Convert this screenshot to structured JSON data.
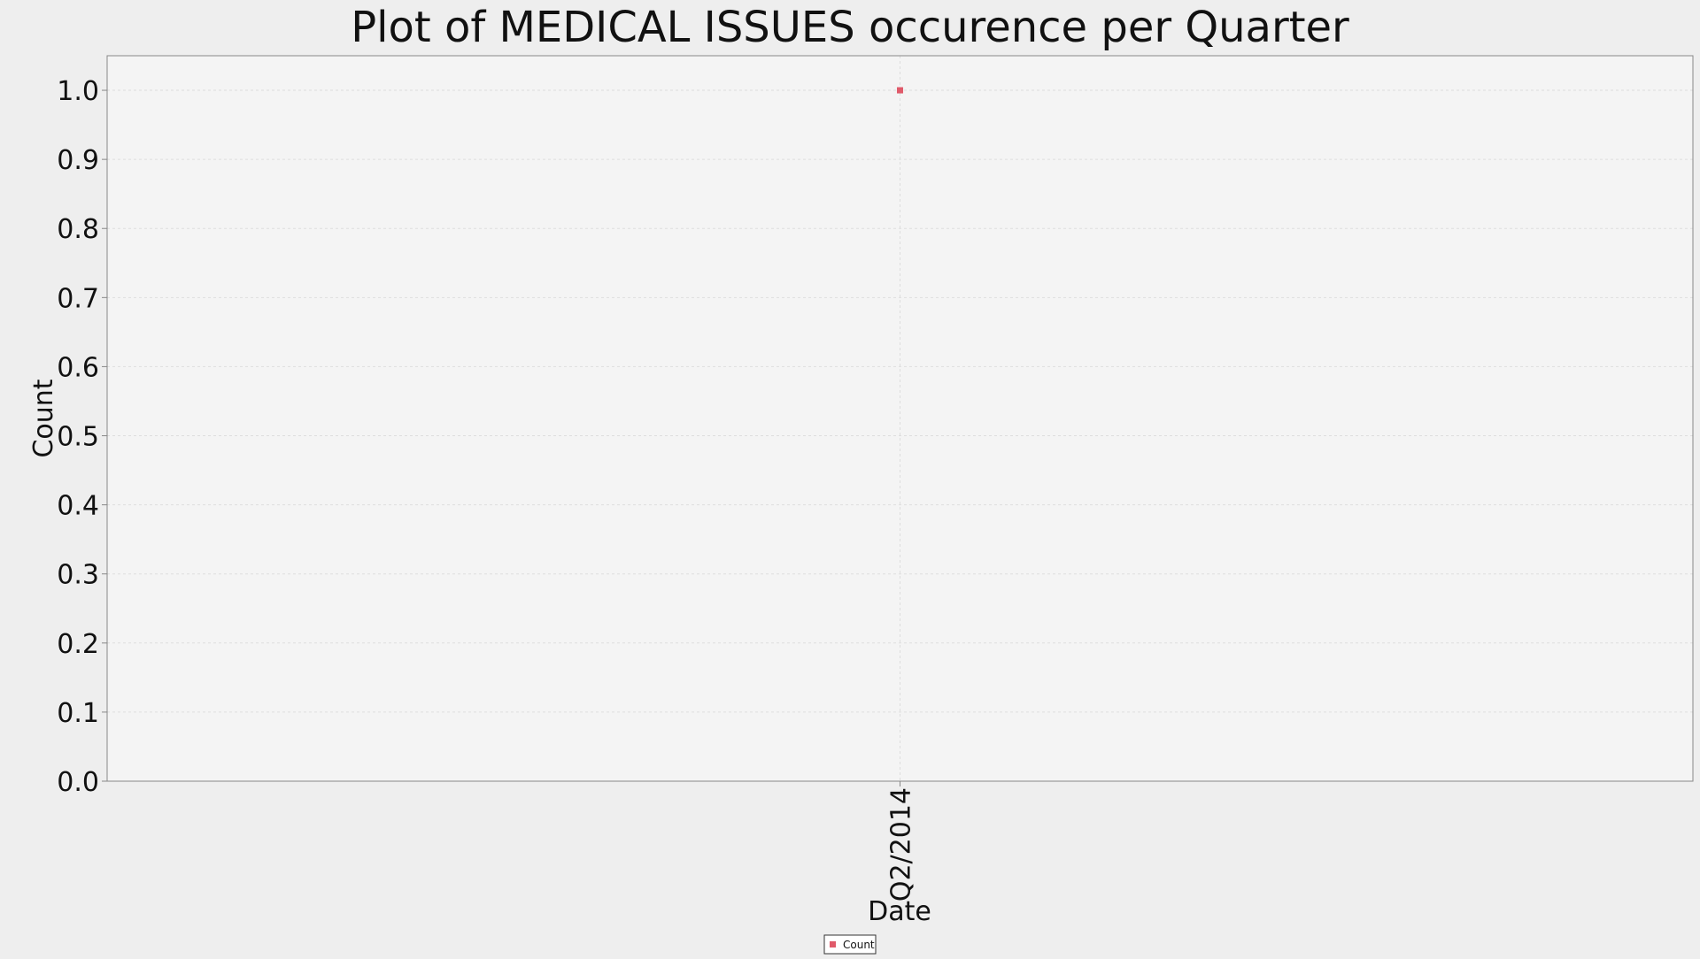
{
  "chart_data": {
    "type": "scatter",
    "title": "Plot of MEDICAL ISSUES occurence per Quarter",
    "xlabel": "Date",
    "ylabel": "Count",
    "categories": [
      "Q2/2014"
    ],
    "series": [
      {
        "name": "Count",
        "color": "#e05a6a",
        "marker": "square",
        "points": [
          {
            "x": "Q2/2014",
            "y": 1.0
          }
        ]
      }
    ],
    "ylim": [
      0.0,
      1.05
    ],
    "yticks": [
      0.0,
      0.1,
      0.2,
      0.3,
      0.4,
      0.5,
      0.6,
      0.7,
      0.8,
      0.9,
      1.0
    ],
    "ytick_labels": [
      "0.0",
      "0.1",
      "0.2",
      "0.3",
      "0.4",
      "0.5",
      "0.6",
      "0.7",
      "0.8",
      "0.9",
      "1.0"
    ],
    "grid": true,
    "legend_position": "bottom-center",
    "plot_background": "#f4f4f4",
    "page_background": "#eeeeee",
    "grid_color": "#dddddd"
  }
}
